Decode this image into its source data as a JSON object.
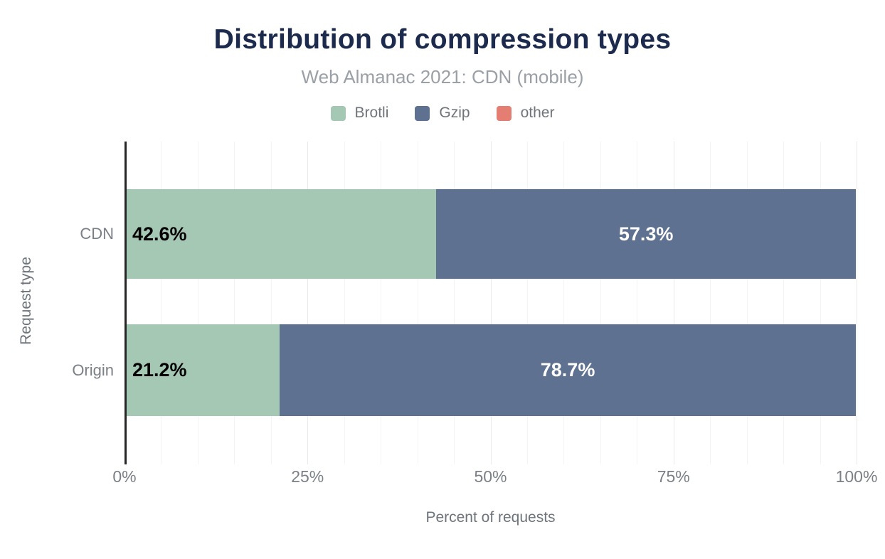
{
  "chart_data": {
    "type": "bar",
    "orientation": "horizontal",
    "stacked": true,
    "title": "Distribution of compression types",
    "subtitle": "Web Almanac 2021: CDN (mobile)",
    "xlabel": "Percent of requests",
    "ylabel": "Request type",
    "xlim": [
      0,
      100
    ],
    "x_ticks": [
      {
        "value": 0,
        "label": "0%"
      },
      {
        "value": 25,
        "label": "25%"
      },
      {
        "value": 50,
        "label": "50%"
      },
      {
        "value": 75,
        "label": "75%"
      },
      {
        "value": 100,
        "label": "100%"
      }
    ],
    "gridline_step_percent": 5,
    "grid": true,
    "legend_position": "top",
    "categories": [
      "CDN",
      "Origin"
    ],
    "series": [
      {
        "name": "Brotli",
        "color": "#a5c8b5",
        "values": [
          42.6,
          21.2
        ],
        "data_labels": [
          "42.6%",
          "21.2%"
        ],
        "label_color": "#000000",
        "label_align": "left"
      },
      {
        "name": "Gzip",
        "color": "#5e7190",
        "values": [
          57.3,
          78.7
        ],
        "data_labels": [
          "57.3%",
          "78.7%"
        ],
        "label_color": "#ffffff",
        "label_align": "center"
      },
      {
        "name": "other",
        "color": "#e57e72",
        "values": [
          0,
          0
        ],
        "data_labels": [
          "",
          ""
        ],
        "label_color": "#000000",
        "label_align": "center"
      }
    ]
  },
  "colors": {
    "background": "#ffffff",
    "title": "#1c2b4d",
    "subtitle": "#9aa0a6",
    "legend_text": "#6f747b",
    "axis_text": "#7b8087",
    "axis_title_text": "#6e747c",
    "axis_line": "#262626",
    "grid_minor": "#f4f4f4",
    "grid_major": "#eaeaea"
  }
}
